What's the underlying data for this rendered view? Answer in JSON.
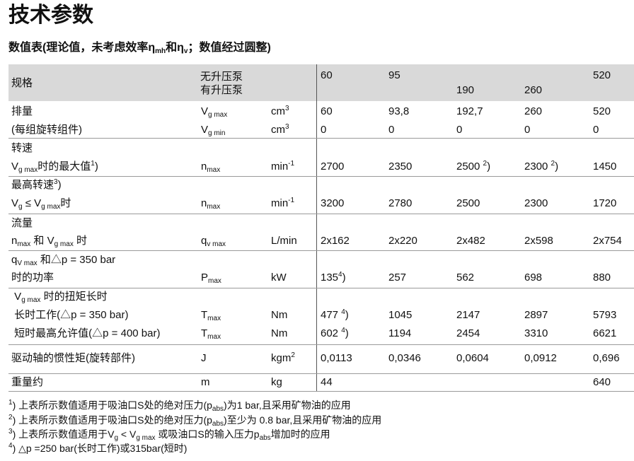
{
  "title": "技术参数",
  "subtitle": [
    "数值表(理论值，未考虑效率η",
    {
      "sub": "mh"
    },
    "和η",
    {
      "sub": "v"
    },
    "；数值经过圆整)"
  ],
  "header": {
    "label": "规格",
    "pump_lines": [
      "无升压泵",
      "有升压泵"
    ],
    "values": [
      "60",
      "95",
      "190",
      "260",
      "520"
    ]
  },
  "table": {
    "rows": [
      {
        "label": [
          "排量"
        ],
        "symbol": [
          "V",
          {
            "sub": "g max"
          }
        ],
        "unit": [
          "cm",
          {
            "sup": "3"
          }
        ],
        "values": [
          [
            "60"
          ],
          [
            "93,8"
          ],
          [
            "192,7"
          ],
          [
            "260"
          ],
          [
            "520"
          ]
        ]
      },
      {
        "label": [
          "(每组旋转组件)"
        ],
        "symbol": [
          "V",
          {
            "sub": "g min"
          }
        ],
        "unit": [
          "cm",
          {
            "sup": "3"
          }
        ],
        "values": [
          [
            "0"
          ],
          [
            "0"
          ],
          [
            "0"
          ],
          [
            "0"
          ],
          [
            "0"
          ]
        ]
      },
      {
        "label": [
          "转速"
        ]
      },
      {
        "label": [
          "V",
          {
            "sub": "g max"
          },
          "时的最大值",
          {
            "sup": "1"
          },
          ")"
        ],
        "symbol": [
          "n",
          {
            "sub": "max"
          }
        ],
        "unit": [
          "min",
          {
            "sup": "-1"
          }
        ],
        "values": [
          [
            "2700"
          ],
          [
            "2350"
          ],
          [
            "2500 ",
            {
              "sup": "2"
            },
            ")"
          ],
          [
            "2300 ",
            {
              "sup": "2"
            },
            ")"
          ],
          [
            "1450"
          ]
        ]
      },
      {
        "label": [
          "最高转速",
          {
            "sup": "3"
          },
          ")"
        ]
      },
      {
        "label": [
          "V",
          {
            "sub": "g"
          },
          " ≤ V",
          {
            "sub": "g max"
          },
          "时"
        ],
        "symbol": [
          "n",
          {
            "sub": "max"
          }
        ],
        "unit": [
          "min",
          {
            "sup": "-1"
          }
        ],
        "values": [
          [
            "3200"
          ],
          [
            "2780"
          ],
          [
            "2500"
          ],
          [
            "2300"
          ],
          [
            "1720"
          ]
        ]
      },
      {
        "label": [
          "流量"
        ]
      },
      {
        "label": [
          "n",
          {
            "sub": "max"
          },
          " 和 V",
          {
            "sub": "g max"
          },
          " 时"
        ],
        "symbol": [
          "q",
          {
            "sub": "v max"
          }
        ],
        "unit": [
          "L/min"
        ],
        "values": [
          [
            "2x162"
          ],
          [
            "2x220"
          ],
          [
            "2x482"
          ],
          [
            "2x598"
          ],
          [
            "2x754"
          ]
        ]
      },
      {
        "label": [
          "q",
          {
            "sub": "V max"
          },
          " 和△p = 350 bar"
        ]
      },
      {
        "label": [
          "时的功率"
        ],
        "symbol": [
          "P",
          {
            "sub": "max"
          }
        ],
        "unit": [
          "kW"
        ],
        "values": [
          [
            "135",
            {
              "sup": "4"
            },
            ")"
          ],
          [
            "257"
          ],
          [
            "562"
          ],
          [
            "698"
          ],
          [
            "880"
          ]
        ]
      },
      {
        "label": [
          " V",
          {
            "sub": "g max"
          },
          " 时的扭矩长时"
        ]
      },
      {
        "label": [
          " 长时工作(△p = 350 bar)"
        ],
        "symbol": [
          "T",
          {
            "sub": "max"
          }
        ],
        "unit": [
          "Nm"
        ],
        "values": [
          [
            "477 ",
            {
              "sup": "4"
            },
            ")"
          ],
          [
            "1045"
          ],
          [
            "2147"
          ],
          [
            "2897"
          ],
          [
            "5793"
          ]
        ]
      },
      {
        "label": [
          " 短时最高允许值(△p = 400 bar)"
        ],
        "symbol": [
          "T",
          {
            "sub": "max"
          }
        ],
        "unit": [
          "Nm"
        ],
        "values": [
          [
            "602 ",
            {
              "sup": "4"
            },
            ")"
          ],
          [
            "1194"
          ],
          [
            "2454"
          ],
          [
            "3310"
          ],
          [
            "6621"
          ]
        ]
      },
      {
        "label": [
          "驱动轴的惯性矩(旋转部件)"
        ],
        "symbol": [
          "J"
        ],
        "unit": [
          "kgm",
          {
            "sup": "2"
          }
        ],
        "values": [
          [
            "0,0113"
          ],
          [
            "0,0346"
          ],
          [
            "0,0604"
          ],
          [
            "0,0912"
          ],
          [
            "0,696"
          ]
        ]
      },
      {
        "label": [
          "重量约"
        ],
        "symbol": [
          "m"
        ],
        "unit": [
          "kg"
        ],
        "values": [
          [
            "44"
          ],
          null,
          null,
          null,
          [
            "640"
          ]
        ]
      }
    ]
  },
  "footnotes": [
    [
      {
        "sup": "1"
      },
      ") 上表所示数值适用于吸油口S处的绝对压力(p",
      {
        "sub": "abs"
      },
      ")为1 bar,且采用矿物油的应用"
    ],
    [
      {
        "sup": "2"
      },
      ") 上表所示数值适用于吸油口S处的绝对压力(p",
      {
        "sub": "abs"
      },
      ")至少为 0.8 bar,且采用矿物油的应用"
    ],
    [
      {
        "sup": "3"
      },
      ") 上表所示数值适用于V",
      {
        "sub": "g"
      },
      " < V",
      {
        "sub": "g max"
      },
      " 或吸油口S的输入压力p",
      {
        "sub": "abs"
      },
      "增加时的应用"
    ],
    [
      {
        "sup": "4"
      },
      ") △p =250 bar(长时工作)或315bar(短时)"
    ]
  ]
}
